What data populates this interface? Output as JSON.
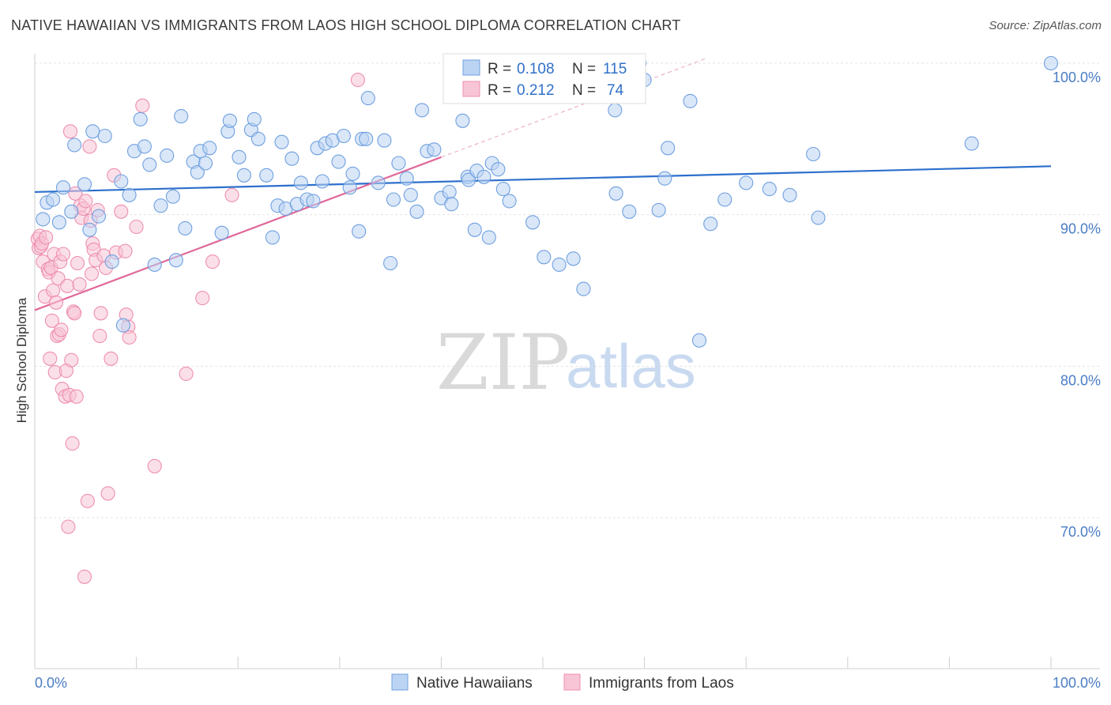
{
  "header": {
    "title": "NATIVE HAWAIIAN VS IMMIGRANTS FROM LAOS HIGH SCHOOL DIPLOMA CORRELATION CHART",
    "source": "Source: ZipAtlas.com"
  },
  "watermark": {
    "zip": "ZIP",
    "atlas": "atlas"
  },
  "chart_data": {
    "type": "scatter",
    "title": "NATIVE HAWAIIAN VS IMMIGRANTS FROM LAOS HIGH SCHOOL DIPLOMA CORRELATION CHART",
    "xlabel": "",
    "ylabel": "High School Diploma",
    "xlim": [
      0,
      100
    ],
    "ylim": [
      60,
      101
    ],
    "x_tick_labels": [
      "0.0%",
      "100.0%"
    ],
    "y_ticks": [
      {
        "value": 100,
        "label": "100.0%"
      },
      {
        "value": 90,
        "label": "90.0%"
      },
      {
        "value": 80,
        "label": "80.0%"
      },
      {
        "value": 70,
        "label": "70.0%"
      }
    ],
    "legend_stats": [
      {
        "r_label": "R =",
        "r": "0.108",
        "n_label": "N =",
        "n": "115"
      },
      {
        "r_label": "R =",
        "r": "0.212",
        "n_label": "N =",
        "n": "74"
      }
    ],
    "series": [
      {
        "name": "Native Hawaiians",
        "color": "#6fa0e0",
        "fill": "#bcd4f3",
        "line_color": "#2c6fcc",
        "trend": {
          "x0": 0,
          "y0": 91.5,
          "x1": 100,
          "y1": 93.2
        },
        "points": [
          [
            0.8,
            89.7
          ],
          [
            1.2,
            90.8
          ],
          [
            1.8,
            91.0
          ],
          [
            2.4,
            89.5
          ],
          [
            2.8,
            91.8
          ],
          [
            3.6,
            90.2
          ],
          [
            3.9,
            94.6
          ],
          [
            4.9,
            92.0
          ],
          [
            5.4,
            89.0
          ],
          [
            5.7,
            95.5
          ],
          [
            6.3,
            89.9
          ],
          [
            6.9,
            95.2
          ],
          [
            7.6,
            86.9
          ],
          [
            8.5,
            92.2
          ],
          [
            8.7,
            82.7
          ],
          [
            9.3,
            91.3
          ],
          [
            9.8,
            94.2
          ],
          [
            10.4,
            96.3
          ],
          [
            10.8,
            94.5
          ],
          [
            11.3,
            93.3
          ],
          [
            11.8,
            86.7
          ],
          [
            12.4,
            90.6
          ],
          [
            13.0,
            93.9
          ],
          [
            13.6,
            91.2
          ],
          [
            13.9,
            87.0
          ],
          [
            14.4,
            96.5
          ],
          [
            14.8,
            89.1
          ],
          [
            15.6,
            93.5
          ],
          [
            16.0,
            92.8
          ],
          [
            16.3,
            94.2
          ],
          [
            16.8,
            93.4
          ],
          [
            17.2,
            94.4
          ],
          [
            18.4,
            88.8
          ],
          [
            19.0,
            95.5
          ],
          [
            19.2,
            96.2
          ],
          [
            20.1,
            93.8
          ],
          [
            20.6,
            92.6
          ],
          [
            21.3,
            95.6
          ],
          [
            21.6,
            96.3
          ],
          [
            22.0,
            95.0
          ],
          [
            22.8,
            92.6
          ],
          [
            23.4,
            88.5
          ],
          [
            23.9,
            90.6
          ],
          [
            24.3,
            94.8
          ],
          [
            24.7,
            90.4
          ],
          [
            25.3,
            93.7
          ],
          [
            25.8,
            90.7
          ],
          [
            26.2,
            92.1
          ],
          [
            26.8,
            91.0
          ],
          [
            27.4,
            90.9
          ],
          [
            27.8,
            94.4
          ],
          [
            28.3,
            92.2
          ],
          [
            28.6,
            94.7
          ],
          [
            29.3,
            94.9
          ],
          [
            29.9,
            93.5
          ],
          [
            30.4,
            95.2
          ],
          [
            31.0,
            91.8
          ],
          [
            31.3,
            92.7
          ],
          [
            31.9,
            88.9
          ],
          [
            32.2,
            95.0
          ],
          [
            32.6,
            95.0
          ],
          [
            32.8,
            97.7
          ],
          [
            33.8,
            92.1
          ],
          [
            34.4,
            94.9
          ],
          [
            35.0,
            86.8
          ],
          [
            35.3,
            91.0
          ],
          [
            35.8,
            93.4
          ],
          [
            36.6,
            92.4
          ],
          [
            37.0,
            91.3
          ],
          [
            37.6,
            90.2
          ],
          [
            38.1,
            96.9
          ],
          [
            38.6,
            94.2
          ],
          [
            39.3,
            94.3
          ],
          [
            40.0,
            91.1
          ],
          [
            40.8,
            91.5
          ],
          [
            41.0,
            90.7
          ],
          [
            42.1,
            96.2
          ],
          [
            42.6,
            92.5
          ],
          [
            42.7,
            92.3
          ],
          [
            43.3,
            89.0
          ],
          [
            43.5,
            92.9
          ],
          [
            44.2,
            92.5
          ],
          [
            44.7,
            88.5
          ],
          [
            45.0,
            93.4
          ],
          [
            45.6,
            93.0
          ],
          [
            46.1,
            91.7
          ],
          [
            46.7,
            90.9
          ],
          [
            49.0,
            89.5
          ],
          [
            50.1,
            87.2
          ],
          [
            51.6,
            86.7
          ],
          [
            53.0,
            87.1
          ],
          [
            54.0,
            85.1
          ],
          [
            57.1,
            96.9
          ],
          [
            57.2,
            91.4
          ],
          [
            58.5,
            90.2
          ],
          [
            59.5,
            100.0
          ],
          [
            60.0,
            98.9
          ],
          [
            61.4,
            90.3
          ],
          [
            62.0,
            92.4
          ],
          [
            62.3,
            94.4
          ],
          [
            64.5,
            97.5
          ],
          [
            65.4,
            81.7
          ],
          [
            66.5,
            89.4
          ],
          [
            67.9,
            91.0
          ],
          [
            70.0,
            92.1
          ],
          [
            72.3,
            91.7
          ],
          [
            74.3,
            91.3
          ],
          [
            76.6,
            94.0
          ],
          [
            77.1,
            89.8
          ],
          [
            92.2,
            94.7
          ],
          [
            100.0,
            100.0
          ]
        ]
      },
      {
        "name": "Immigrants from Laos",
        "color": "#ee8fb0",
        "fill": "#f8c5d6",
        "line_color": "#e0689a",
        "trend": {
          "x0": 0,
          "y0": 83.7,
          "x1": 40,
          "y1": 93.8
        },
        "trend_ext": {
          "x0": 40,
          "y0": 93.8,
          "x1": 66,
          "y1": 100.3
        },
        "points": [
          [
            0.3,
            88.4
          ],
          [
            0.4,
            87.8
          ],
          [
            0.5,
            88.6
          ],
          [
            0.6,
            87.9
          ],
          [
            0.7,
            88.1
          ],
          [
            0.8,
            86.9
          ],
          [
            1.0,
            84.6
          ],
          [
            1.1,
            88.5
          ],
          [
            1.3,
            86.4
          ],
          [
            1.4,
            86.2
          ],
          [
            1.5,
            80.5
          ],
          [
            1.6,
            86.5
          ],
          [
            1.7,
            83.0
          ],
          [
            1.8,
            85.0
          ],
          [
            1.9,
            87.4
          ],
          [
            2.0,
            79.6
          ],
          [
            2.1,
            84.2
          ],
          [
            2.2,
            82.0
          ],
          [
            2.3,
            85.8
          ],
          [
            2.4,
            82.1
          ],
          [
            2.5,
            86.9
          ],
          [
            2.6,
            82.4
          ],
          [
            2.7,
            78.5
          ],
          [
            2.8,
            87.4
          ],
          [
            3.0,
            78.0
          ],
          [
            3.1,
            79.7
          ],
          [
            3.2,
            85.3
          ],
          [
            3.3,
            69.4
          ],
          [
            3.4,
            78.1
          ],
          [
            3.5,
            95.5
          ],
          [
            3.6,
            80.4
          ],
          [
            3.7,
            74.9
          ],
          [
            3.8,
            83.6
          ],
          [
            3.9,
            83.5
          ],
          [
            4.0,
            91.4
          ],
          [
            4.1,
            78.0
          ],
          [
            4.2,
            86.8
          ],
          [
            4.4,
            85.4
          ],
          [
            4.5,
            90.6
          ],
          [
            4.6,
            89.8
          ],
          [
            4.8,
            90.4
          ],
          [
            4.9,
            66.1
          ],
          [
            5.0,
            90.9
          ],
          [
            5.2,
            71.1
          ],
          [
            5.4,
            94.5
          ],
          [
            5.5,
            89.6
          ],
          [
            5.6,
            86.1
          ],
          [
            5.7,
            88.1
          ],
          [
            5.8,
            87.7
          ],
          [
            6.0,
            87.0
          ],
          [
            6.2,
            90.3
          ],
          [
            6.4,
            82.0
          ],
          [
            6.5,
            83.5
          ],
          [
            6.8,
            87.3
          ],
          [
            7.0,
            86.5
          ],
          [
            7.2,
            71.6
          ],
          [
            7.5,
            80.5
          ],
          [
            7.8,
            92.6
          ],
          [
            8.0,
            87.5
          ],
          [
            8.5,
            90.2
          ],
          [
            8.9,
            87.6
          ],
          [
            9.0,
            83.4
          ],
          [
            9.2,
            82.6
          ],
          [
            9.3,
            81.9
          ],
          [
            10.0,
            89.2
          ],
          [
            10.6,
            97.2
          ],
          [
            11.8,
            73.4
          ],
          [
            14.9,
            79.5
          ],
          [
            16.5,
            84.5
          ],
          [
            17.5,
            86.9
          ],
          [
            19.4,
            91.3
          ],
          [
            31.8,
            98.9
          ]
        ]
      }
    ]
  },
  "bottom_legend": [
    {
      "label": "Native Hawaiians"
    },
    {
      "label": "Immigrants from Laos"
    }
  ]
}
